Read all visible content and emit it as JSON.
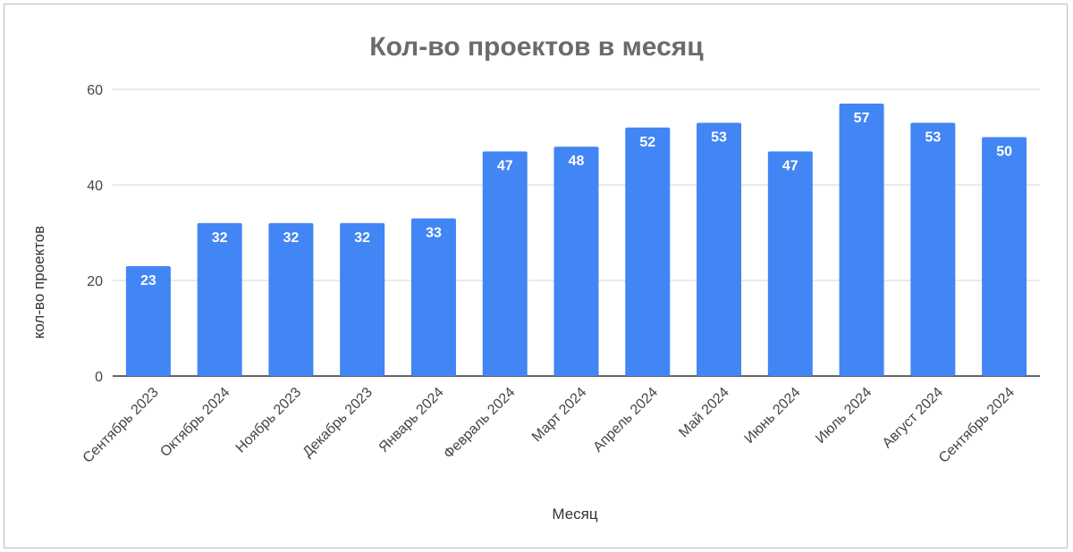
{
  "chart_data": {
    "type": "bar",
    "title": "Кол-во проектов в месяц",
    "xlabel": "Месяц",
    "ylabel": "кол-во проектов",
    "categories": [
      "Сентябрь 2023",
      "Октябрь 2024",
      "Ноябрь 2023",
      "Декабрь 2023",
      "Январь 2024",
      "Февраль 2024",
      "Март 2024",
      "Апрель 2024",
      "Май 2024",
      "Июнь 2024",
      "Июль 2024",
      "Август 2024",
      "Сентябрь 2024"
    ],
    "values": [
      23,
      32,
      32,
      32,
      33,
      47,
      48,
      52,
      53,
      47,
      57,
      53,
      50
    ],
    "ylim": [
      0,
      60
    ],
    "yticks": [
      0,
      20,
      40,
      60
    ],
    "grid": true,
    "bar_color": "#4285f4",
    "data_labels": true
  }
}
